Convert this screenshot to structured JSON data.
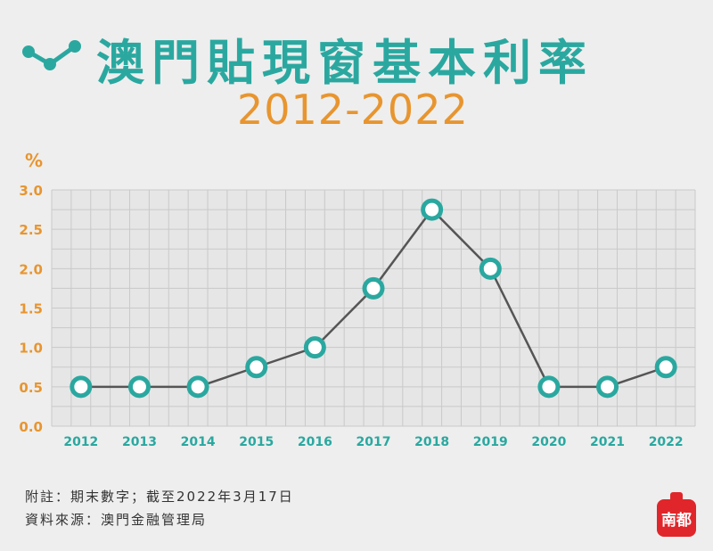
{
  "title": "澳門貼現窗基本利率",
  "subtitle": "2012-2022",
  "unit": "%",
  "notes": {
    "line1": "附註：期末數字；截至2022年3月17日",
    "line2": "資料來源：澳門金融管理局"
  },
  "badge": "南都",
  "colors": {
    "teal": "#2aa8a0",
    "orange": "#e8952f",
    "line": "#555555",
    "grid": "#c9c9c9",
    "badge": "#e0262a"
  },
  "icons": [
    "line-chart-logo-icon"
  ],
  "chart_data": {
    "type": "line",
    "x": [
      "2012",
      "2013",
      "2014",
      "2015",
      "2016",
      "2017",
      "2018",
      "2019",
      "2020",
      "2021",
      "2022"
    ],
    "series": [
      {
        "values": [
          0.5,
          0.5,
          0.5,
          0.75,
          1.0,
          1.75,
          2.75,
          2.0,
          0.5,
          0.5,
          0.75
        ]
      }
    ],
    "yticks": [
      "0.0",
      "0.5",
      "1.0",
      "1.5",
      "2.0",
      "2.5",
      "3.0"
    ],
    "ylim": [
      0,
      3.0
    ],
    "grid": true
  }
}
